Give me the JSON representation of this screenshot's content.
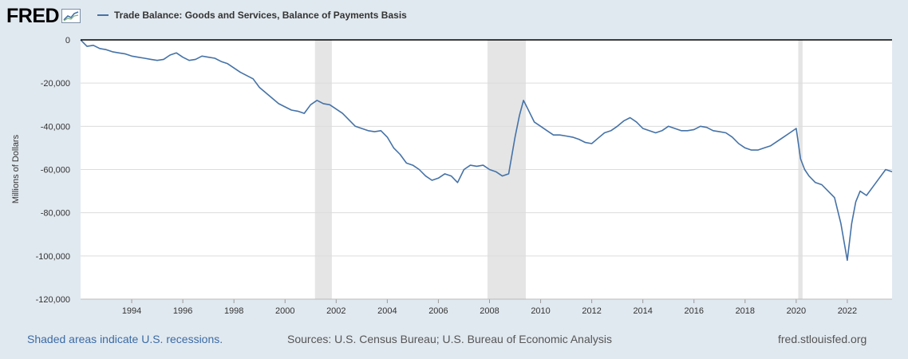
{
  "logo": {
    "text": "FRED",
    "icon": "line-chart-icon"
  },
  "colors": {
    "series": "#4572a7",
    "recession": "#e5e5e5",
    "background": "#e1e9f0",
    "plot": "#ffffff"
  },
  "chart_data": {
    "type": "line",
    "title": "Trade Balance: Goods and Services, Balance of Payments Basis",
    "xlabel": "",
    "ylabel": "Millions of Dollars",
    "xlim": [
      1992.0,
      2023.75
    ],
    "ylim": [
      -120000,
      0
    ],
    "y_ticks": [
      0,
      -20000,
      -40000,
      -60000,
      -80000,
      -100000,
      -120000
    ],
    "y_tick_labels": [
      "0",
      "-20,000",
      "-40,000",
      "-60,000",
      "-80,000",
      "-100,000",
      "-120,000"
    ],
    "x_ticks": [
      1994,
      1996,
      1998,
      2000,
      2002,
      2004,
      2006,
      2008,
      2010,
      2012,
      2014,
      2016,
      2018,
      2020,
      2022
    ],
    "x_tick_labels": [
      "1994",
      "1996",
      "1998",
      "2000",
      "2002",
      "2004",
      "2006",
      "2008",
      "2010",
      "2012",
      "2014",
      "2016",
      "2018",
      "2020",
      "2022"
    ],
    "grid": true,
    "legend": "top-left",
    "recessions": [
      [
        2001.17,
        2001.83
      ],
      [
        2007.92,
        2009.42
      ],
      [
        2020.08,
        2020.25
      ]
    ],
    "series": [
      {
        "name": "Trade Balance: Goods and Services, Balance of Payments Basis",
        "x": [
          1992.0,
          1992.25,
          1992.5,
          1992.75,
          1993.0,
          1993.25,
          1993.5,
          1993.75,
          1994.0,
          1994.25,
          1994.5,
          1994.75,
          1995.0,
          1995.25,
          1995.5,
          1995.75,
          1996.0,
          1996.25,
          1996.5,
          1996.75,
          1997.0,
          1997.25,
          1997.5,
          1997.75,
          1998.0,
          1998.25,
          1998.5,
          1998.75,
          1999.0,
          1999.25,
          1999.5,
          1999.75,
          2000.0,
          2000.25,
          2000.5,
          2000.75,
          2001.0,
          2001.25,
          2001.5,
          2001.75,
          2002.0,
          2002.25,
          2002.5,
          2002.75,
          2003.0,
          2003.25,
          2003.5,
          2003.75,
          2004.0,
          2004.25,
          2004.5,
          2004.75,
          2005.0,
          2005.25,
          2005.5,
          2005.75,
          2006.0,
          2006.25,
          2006.5,
          2006.75,
          2007.0,
          2007.25,
          2007.5,
          2007.75,
          2008.0,
          2008.25,
          2008.5,
          2008.75,
          2009.0,
          2009.17,
          2009.33,
          2009.5,
          2009.75,
          2010.0,
          2010.25,
          2010.5,
          2010.75,
          2011.0,
          2011.25,
          2011.5,
          2011.75,
          2012.0,
          2012.25,
          2012.5,
          2012.75,
          2013.0,
          2013.25,
          2013.5,
          2013.75,
          2014.0,
          2014.25,
          2014.5,
          2014.75,
          2015.0,
          2015.25,
          2015.5,
          2015.75,
          2016.0,
          2016.25,
          2016.5,
          2016.75,
          2017.0,
          2017.25,
          2017.5,
          2017.75,
          2018.0,
          2018.25,
          2018.5,
          2018.75,
          2019.0,
          2019.25,
          2019.5,
          2019.75,
          2020.0,
          2020.17,
          2020.33,
          2020.5,
          2020.75,
          2021.0,
          2021.25,
          2021.5,
          2021.75,
          2022.0,
          2022.17,
          2022.33,
          2022.5,
          2022.75,
          2023.0,
          2023.25,
          2023.5,
          2023.75
        ],
        "values": [
          0,
          -3000,
          -2500,
          -4000,
          -4500,
          -5500,
          -6000,
          -6500,
          -7500,
          -8000,
          -8500,
          -9000,
          -9500,
          -9000,
          -7000,
          -6000,
          -8000,
          -9500,
          -9000,
          -7500,
          -8000,
          -8500,
          -10000,
          -11000,
          -13000,
          -15000,
          -16500,
          -18000,
          -22000,
          -24500,
          -27000,
          -29500,
          -31000,
          -32500,
          -33000,
          -34000,
          -30000,
          -28000,
          -29500,
          -30000,
          -32000,
          -34000,
          -37000,
          -40000,
          -41000,
          -42000,
          -42500,
          -42000,
          -45000,
          -50000,
          -53000,
          -57000,
          -58000,
          -60000,
          -63000,
          -65000,
          -64000,
          -62000,
          -63000,
          -66000,
          -60000,
          -58000,
          -58500,
          -58000,
          -60000,
          -61000,
          -63000,
          -62000,
          -45000,
          -35000,
          -28000,
          -32000,
          -38000,
          -40000,
          -42000,
          -44000,
          -44000,
          -44500,
          -45000,
          -46000,
          -47500,
          -48000,
          -45500,
          -43000,
          -42000,
          -40000,
          -37500,
          -36000,
          -38000,
          -41000,
          -42000,
          -43000,
          -42000,
          -40000,
          -41000,
          -42000,
          -42000,
          -41500,
          -40000,
          -40500,
          -42000,
          -42500,
          -43000,
          -45000,
          -48000,
          -50000,
          -51000,
          -51000,
          -50000,
          -49000,
          -47000,
          -45000,
          -43000,
          -41000,
          -55000,
          -60000,
          -63000,
          -66000,
          -67000,
          -70000,
          -73000,
          -85000,
          -102000,
          -85000,
          -75000,
          -70000,
          -72000,
          -68000,
          -64000,
          -60000,
          -61000
        ]
      }
    ]
  },
  "footer": {
    "recession_note": "Shaded areas indicate U.S. recessions.",
    "sources": "Sources: U.S. Census Bureau; U.S. Bureau of Economic Analysis",
    "site": "fred.stlouisfed.org"
  }
}
